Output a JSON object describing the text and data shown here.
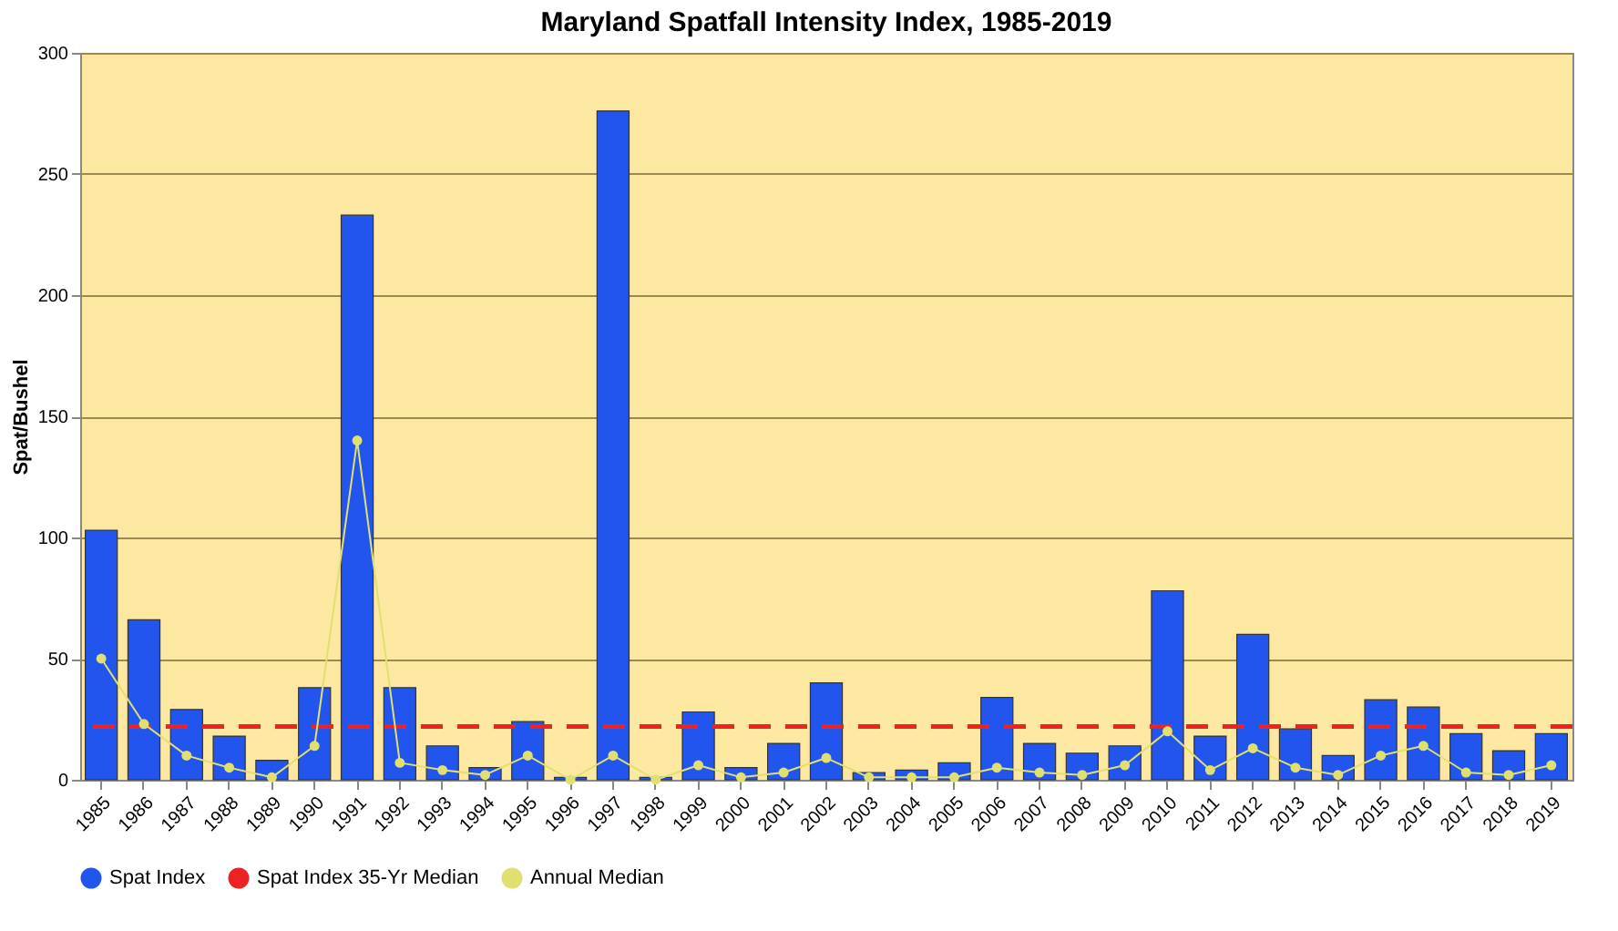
{
  "chart_data": {
    "type": "bar",
    "title": "Maryland Spatfall Intensity Index, 1985-2019",
    "ylabel": "Spat/Bushel",
    "categories": [
      "1985",
      "1986",
      "1987",
      "1988",
      "1989",
      "1990",
      "1991",
      "1992",
      "1993",
      "1994",
      "1995",
      "1996",
      "1997",
      "1998",
      "1999",
      "2000",
      "2001",
      "2002",
      "2003",
      "2004",
      "2005",
      "2006",
      "2007",
      "2008",
      "2009",
      "2010",
      "2011",
      "2012",
      "2013",
      "2014",
      "2015",
      "2016",
      "2017",
      "2018",
      "2019"
    ],
    "series": [
      {
        "name": "Spat Index",
        "color": "#2255ee",
        "values": [
          103,
          66,
          29,
          18,
          8,
          38,
          233,
          38,
          14,
          5,
          24,
          1,
          276,
          1,
          28,
          5,
          15,
          40,
          3,
          4,
          7,
          34,
          15,
          11,
          14,
          78,
          18,
          60,
          21,
          10,
          33,
          30,
          19,
          12,
          19
        ]
      },
      {
        "name": "Annual Median",
        "type": "line",
        "marker": "circle",
        "color": "#e0e070",
        "values": [
          50,
          23,
          10,
          5,
          1,
          14,
          140,
          7,
          4,
          2,
          10,
          0,
          10,
          0,
          6,
          1,
          3,
          9,
          1,
          1,
          1,
          5,
          3,
          2,
          6,
          20,
          4,
          13,
          5,
          2,
          10,
          14,
          3,
          2,
          6
        ]
      }
    ],
    "ref_lines": [
      {
        "axis": "y",
        "value": 22,
        "label": "Spat Index 35-Yr Median",
        "color": "#ee2222",
        "line_style": "dashed"
      }
    ],
    "ylim": [
      0,
      300
    ],
    "yticks": [
      0,
      50,
      100,
      150,
      200,
      250,
      300
    ],
    "grid": "y",
    "legend": "bottom"
  }
}
